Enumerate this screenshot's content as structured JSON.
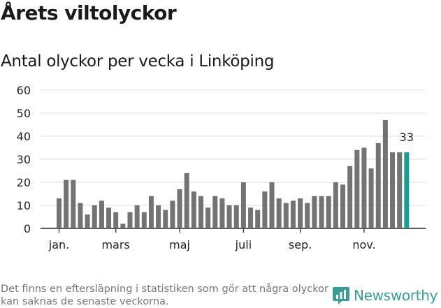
{
  "title": "Årets viltolyckor",
  "subtitle": "Antal olyckor per vecka i Linköping",
  "footnote": "Det finns en eftersläpning i statistiken som gör att några olyckor kan saknas de senaste veckorna.",
  "brand": "Newsworthy",
  "colors": {
    "bar": "#737373",
    "highlight": "#1a9e8f",
    "grid": "#dddddd",
    "axis": "#222222",
    "brand": "#3a9e97"
  },
  "chart_data": {
    "type": "bar",
    "x": [
      "1",
      "2",
      "3",
      "4",
      "5",
      "6",
      "7",
      "8",
      "9",
      "10",
      "11",
      "12",
      "13",
      "14",
      "15",
      "16",
      "17",
      "18",
      "19",
      "20",
      "21",
      "22",
      "23",
      "24",
      "25",
      "26",
      "27",
      "28",
      "29",
      "30",
      "31",
      "32",
      "33",
      "34",
      "35",
      "36",
      "37",
      "38",
      "39",
      "40",
      "41",
      "42",
      "43",
      "44",
      "45",
      "46",
      "47",
      "48",
      "49",
      "50"
    ],
    "values": [
      13,
      21,
      21,
      11,
      6,
      10,
      12,
      9,
      7,
      2,
      7,
      10,
      7,
      14,
      10,
      8,
      12,
      17,
      24,
      16,
      14,
      9,
      14,
      13,
      10,
      10,
      20,
      9,
      8,
      16,
      20,
      13,
      11,
      12,
      13,
      11,
      14,
      14,
      14,
      20,
      19,
      27,
      34,
      35,
      26,
      37,
      47,
      33,
      33,
      33
    ],
    "highlight_index": 49,
    "highlight_label": "33",
    "month_ticks": [
      {
        "label": "jan.",
        "week": 1
      },
      {
        "label": "mars",
        "week": 9
      },
      {
        "label": "maj",
        "week": 18
      },
      {
        "label": "juli",
        "week": 27
      },
      {
        "label": "sep.",
        "week": 35
      },
      {
        "label": "nov.",
        "week": 44
      }
    ],
    "y_ticks": [
      "0",
      "10",
      "20",
      "30",
      "40",
      "50",
      "60"
    ],
    "ylim": [
      0,
      60
    ],
    "grid": true
  }
}
